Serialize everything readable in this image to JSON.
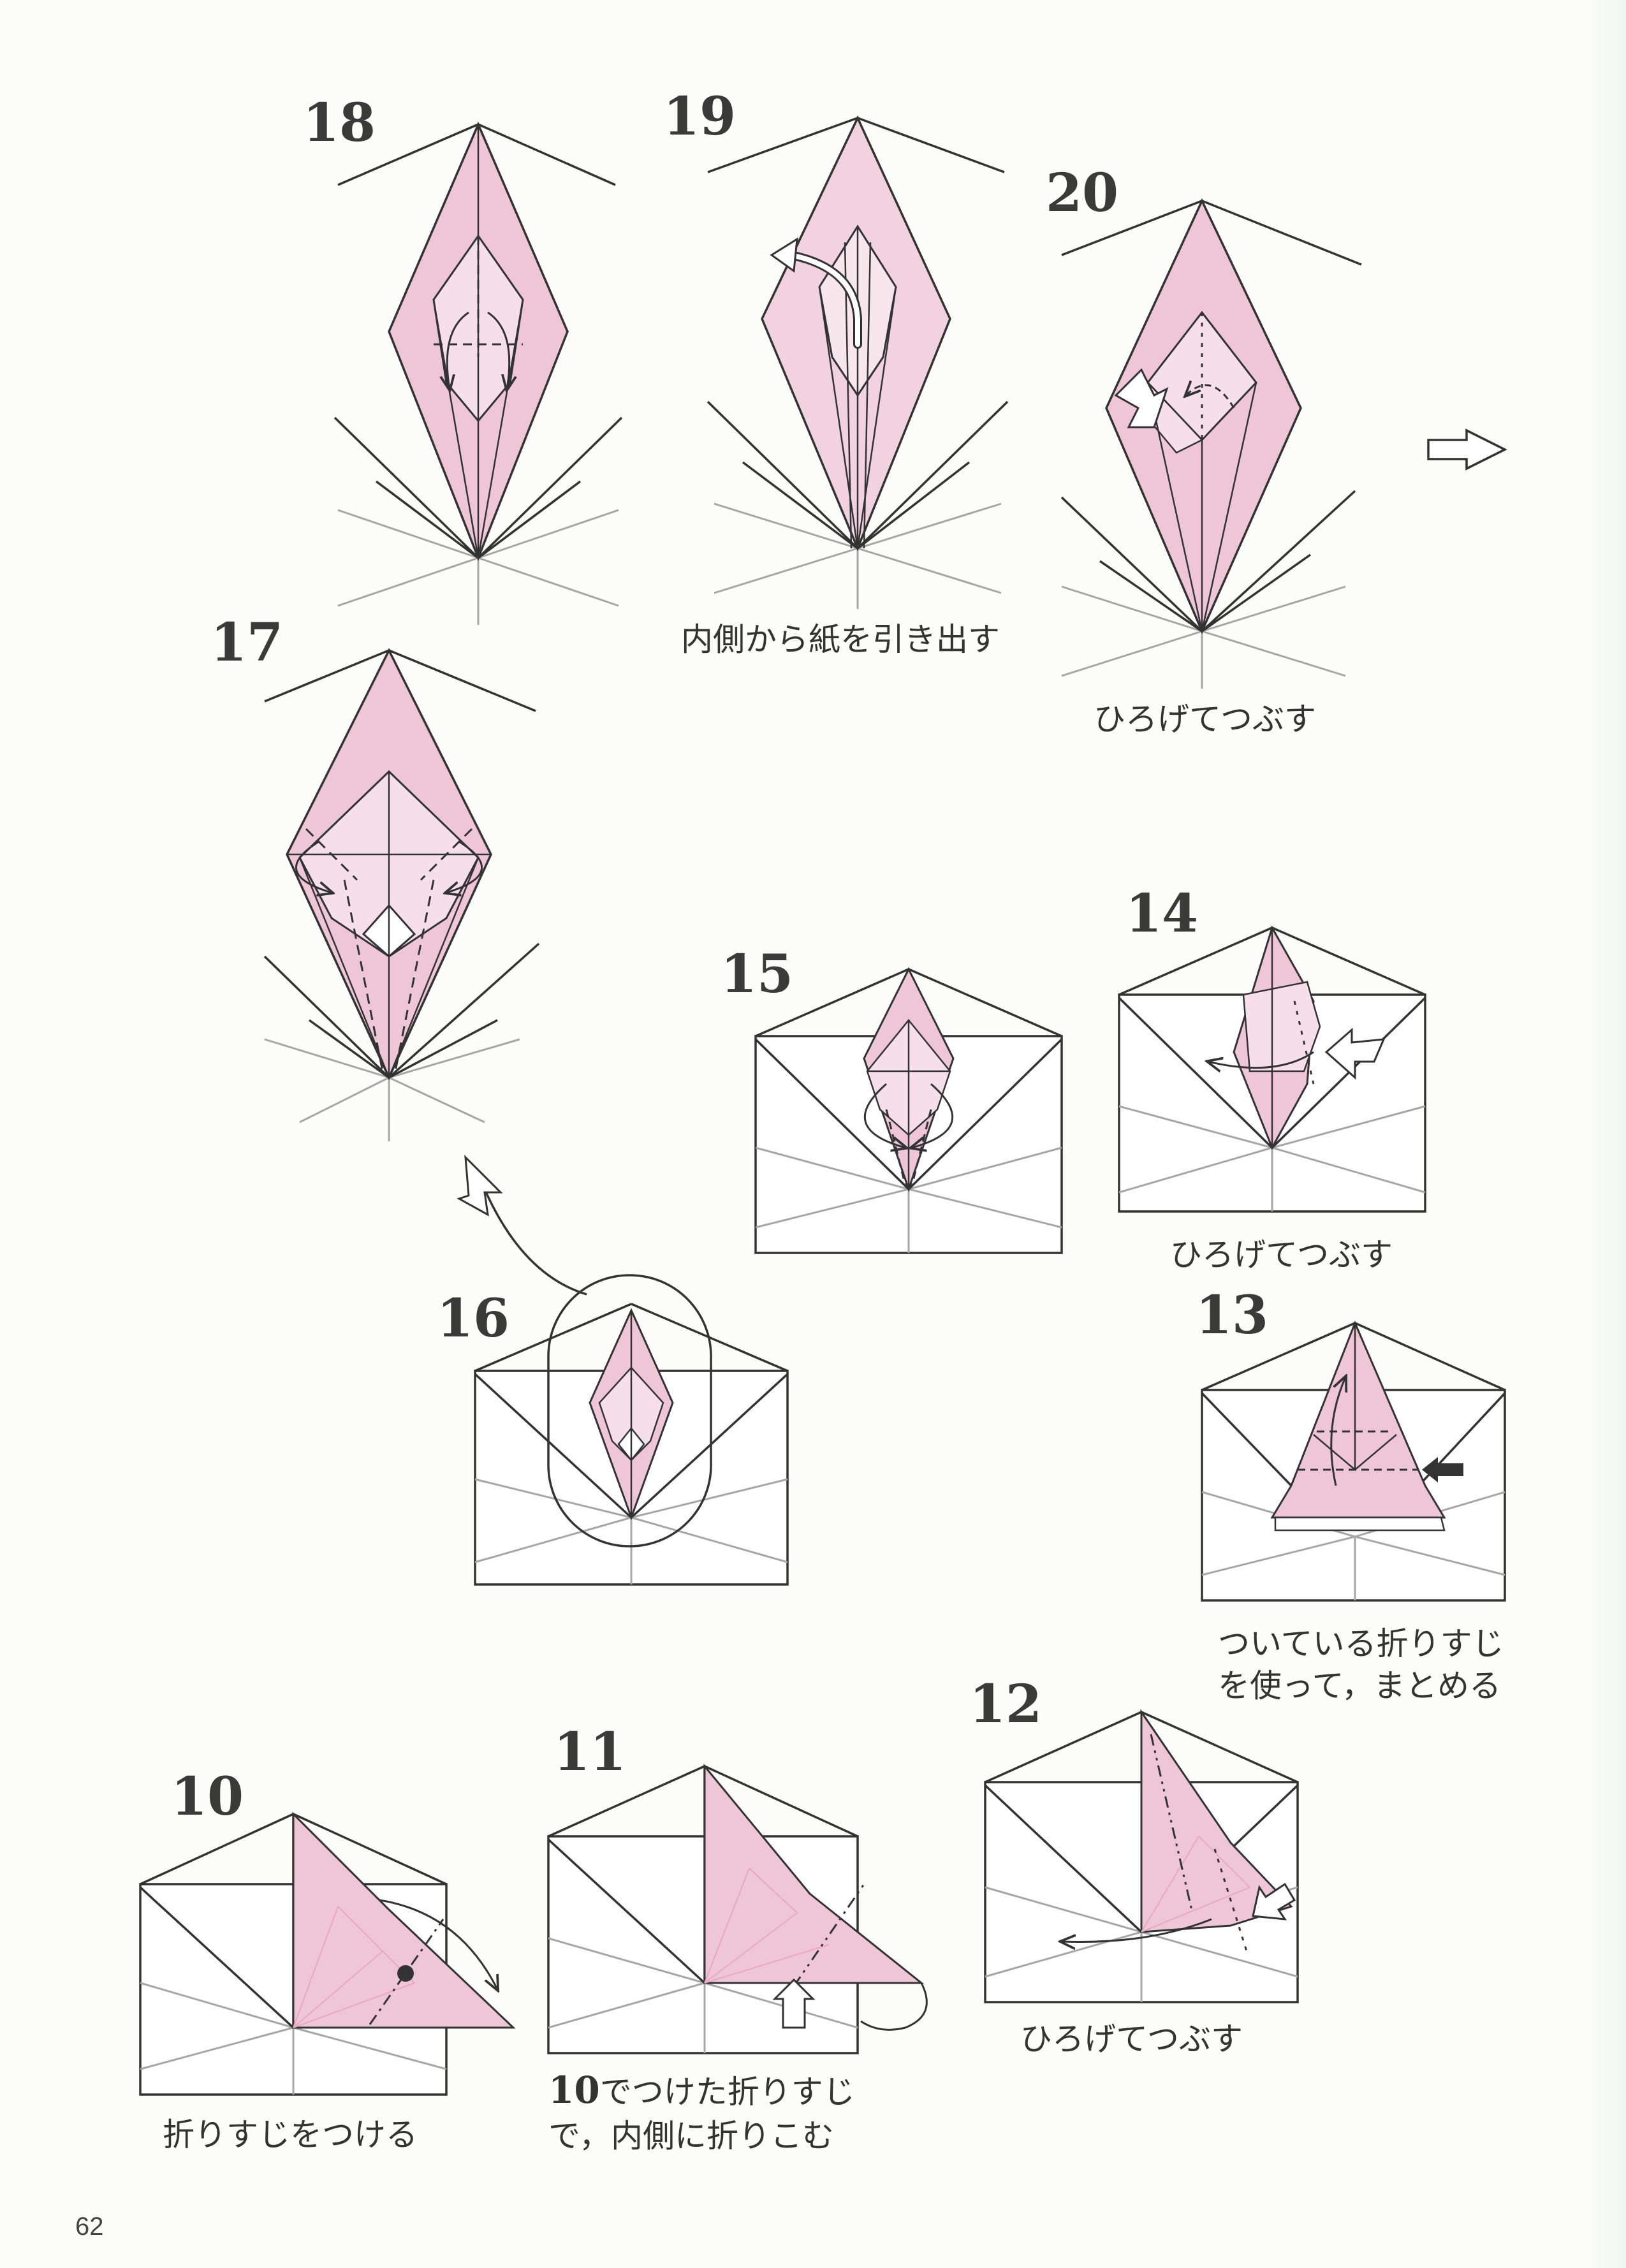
{
  "colors": {
    "paper": "#efc6d6",
    "paperLight": "#f6dfe8",
    "line": "#333333",
    "grid": "#a6a6a6",
    "background": "#fcfcfb"
  },
  "page_number": "62",
  "steps": [
    {
      "number": "18",
      "caption": ""
    },
    {
      "number": "19",
      "caption": "内側から紙を引き出す"
    },
    {
      "number": "20",
      "caption": "ひろげてつぶす"
    },
    {
      "number": "17",
      "caption": ""
    },
    {
      "number": "15",
      "caption": ""
    },
    {
      "number": "14",
      "caption": "ひろげてつぶす"
    },
    {
      "number": "16",
      "caption": ""
    },
    {
      "number": "13",
      "caption_lines": [
        "ついている折りすじ",
        "を使って，まとめる"
      ]
    },
    {
      "number": "10",
      "caption": "折りすじをつける"
    },
    {
      "number": "11",
      "caption_lead": "10",
      "caption_lines": [
        "でつけた折りすじ",
        "で，内側に折りこむ"
      ]
    },
    {
      "number": "12",
      "caption": "ひろげてつぶす"
    }
  ]
}
